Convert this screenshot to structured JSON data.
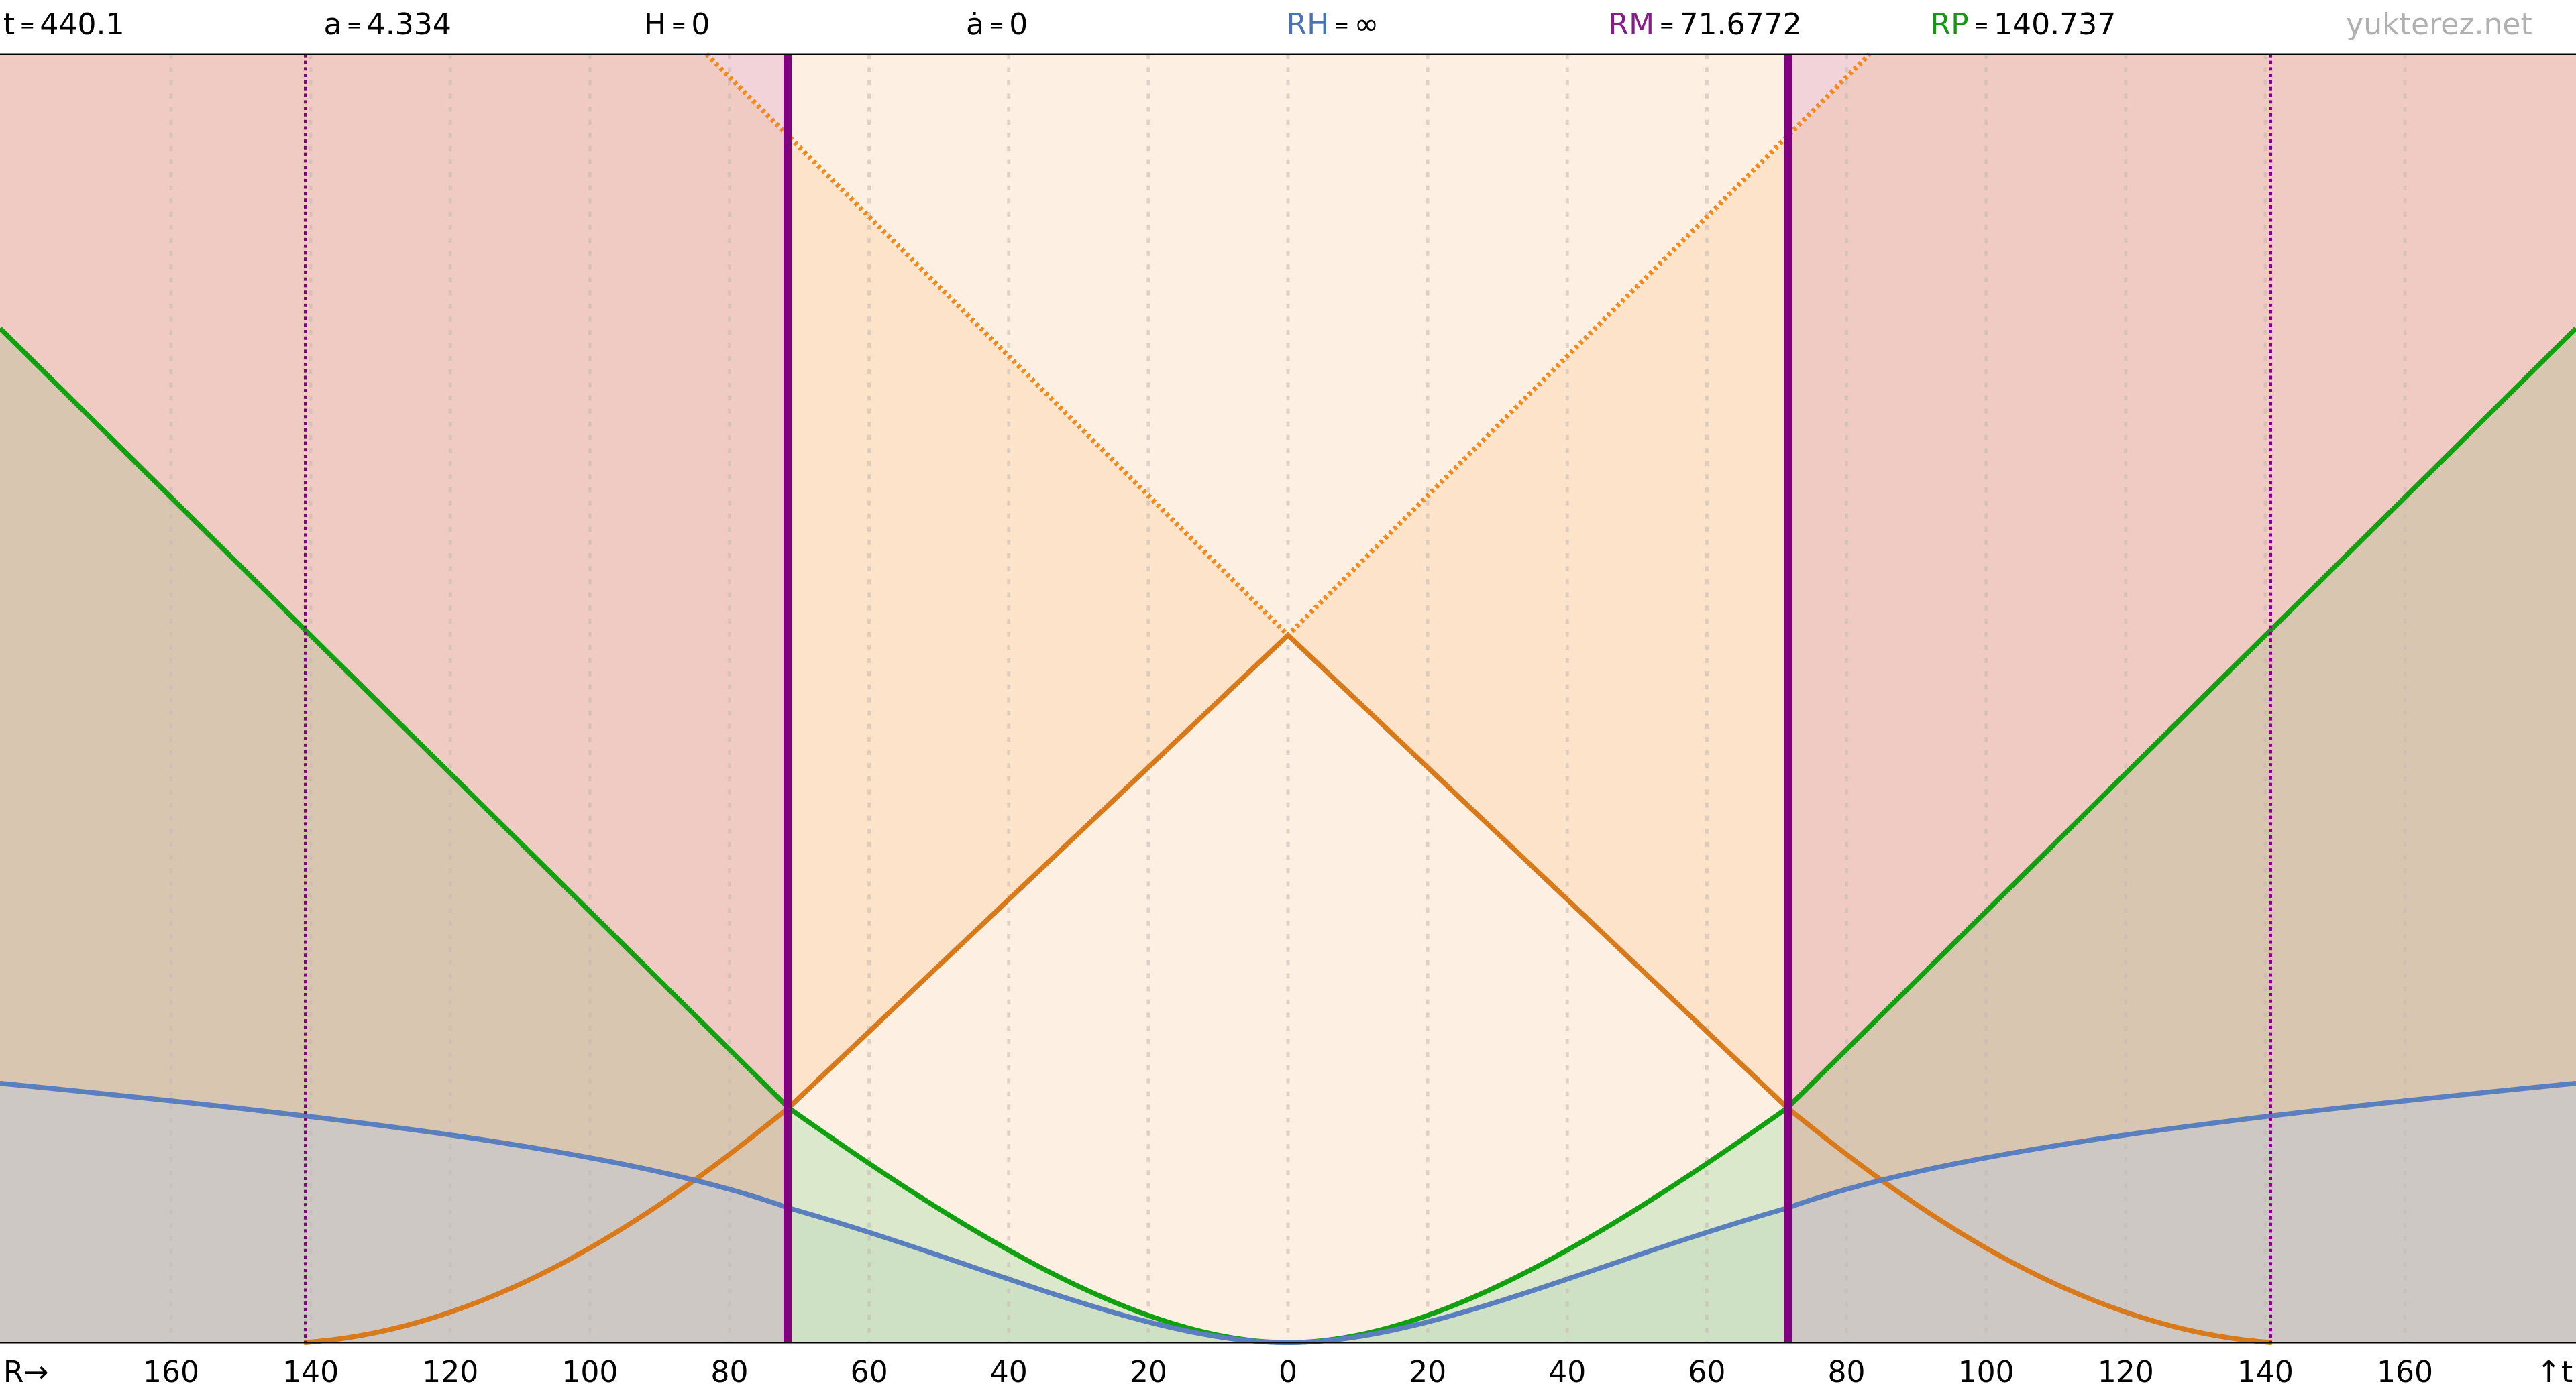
{
  "header": {
    "items": [
      {
        "name": "t",
        "value": 440.1
      },
      {
        "name": "a",
        "value": 4.334
      },
      {
        "name": "H",
        "value": 0
      },
      {
        "name": "ȧ",
        "value": 0
      },
      {
        "name": "RH",
        "value": "∞",
        "color": "#4a72b8"
      },
      {
        "name": "RM",
        "value": 71.6772,
        "color": "#8b1a8b"
      },
      {
        "name": "RP",
        "value": 140.737,
        "color": "#109a10"
      }
    ],
    "separator": "=",
    "site": "yukterez.net"
  },
  "chart_data": {
    "type": "line",
    "x_label": "R→",
    "y_label": "↑t",
    "xlim": [
      -184.5,
      184.5
    ],
    "xticks": [
      {
        "value": -160,
        "label": "160"
      },
      {
        "value": -140,
        "label": "140"
      },
      {
        "value": -120,
        "label": "120"
      },
      {
        "value": -100,
        "label": "100"
      },
      {
        "value": -80,
        "label": "80"
      },
      {
        "value": -60,
        "label": "60"
      },
      {
        "value": -40,
        "label": "40"
      },
      {
        "value": -20,
        "label": "20"
      },
      0,
      20,
      40,
      60,
      80,
      100,
      120,
      140,
      160
    ]
  }
}
